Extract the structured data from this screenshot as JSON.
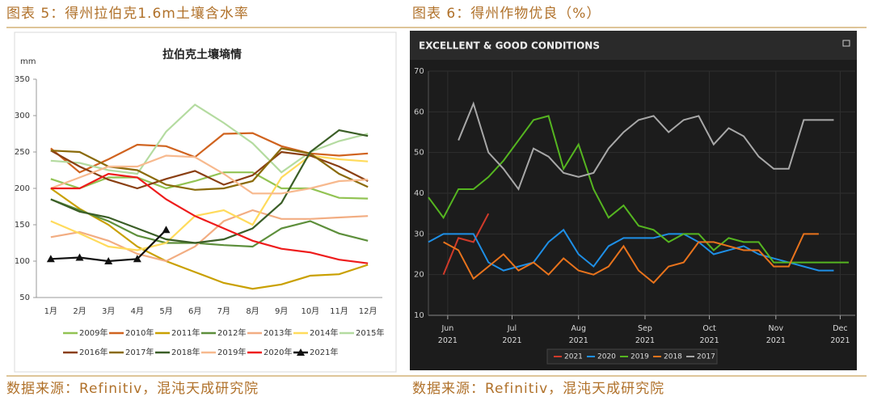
{
  "captions": [
    "图表 5：得州拉伯克1.6m土壤含水率",
    "图表 6：得州作物优良（%）"
  ],
  "sources": [
    "数据来源：Refinitiv，混沌天成研究院",
    "数据来源：Refinitiv，混沌天成研究院"
  ],
  "chart_data": [
    {
      "type": "line",
      "title": "拉伯克土壤墒情",
      "y_label": "mm",
      "categories": [
        "1月",
        "2月",
        "3月",
        "4月",
        "5月",
        "6月",
        "7月",
        "8月",
        "9月",
        "10月",
        "11月",
        "12月"
      ],
      "ylim": [
        50,
        350
      ],
      "yticks": [
        50,
        100,
        150,
        200,
        250,
        300,
        350
      ],
      "grid": false,
      "series": [
        {
          "name": "2009年",
          "color": "#92c353",
          "values": [
            213,
            200,
            215,
            215,
            200,
            210,
            222,
            222,
            200,
            200,
            187,
            186
          ]
        },
        {
          "name": "2010年",
          "color": "#d0631f",
          "values": [
            255,
            222,
            240,
            260,
            258,
            243,
            275,
            276,
            258,
            248,
            245,
            248
          ]
        },
        {
          "name": "2011年",
          "color": "#c9a000",
          "values": [
            200,
            172,
            150,
            120,
            100,
            85,
            70,
            62,
            68,
            80,
            82,
            95
          ]
        },
        {
          "name": "2012年",
          "color": "#5d8f3b",
          "values": [
            185,
            170,
            155,
            135,
            125,
            125,
            122,
            120,
            145,
            155,
            138,
            128
          ]
        },
        {
          "name": "2013年",
          "color": "#f2ad82",
          "values": [
            133,
            140,
            128,
            110,
            100,
            120,
            155,
            170,
            158,
            158,
            160,
            162
          ]
        },
        {
          "name": "2014年",
          "color": "#ffdb5c",
          "values": [
            155,
            138,
            120,
            115,
            125,
            162,
            170,
            150,
            215,
            245,
            240,
            237
          ]
        },
        {
          "name": "2015年",
          "color": "#b4dba0",
          "values": [
            238,
            235,
            225,
            220,
            278,
            315,
            290,
            262,
            222,
            250,
            265,
            275
          ]
        },
        {
          "name": "2016年",
          "color": "#8a3f12",
          "values": [
            252,
            230,
            212,
            200,
            213,
            224,
            205,
            218,
            250,
            245,
            230,
            210
          ]
        },
        {
          "name": "2017年",
          "color": "#8a6a0a",
          "values": [
            252,
            250,
            230,
            225,
            205,
            198,
            200,
            210,
            255,
            248,
            220,
            202
          ]
        },
        {
          "name": "2018年",
          "color": "#3b5e27",
          "values": [
            185,
            168,
            160,
            145,
            130,
            125,
            130,
            145,
            180,
            250,
            280,
            272
          ]
        },
        {
          "name": "2019年",
          "color": "#f7b98e",
          "values": [
            200,
            215,
            230,
            230,
            245,
            243,
            220,
            193,
            193,
            200,
            210,
            212
          ]
        },
        {
          "name": "2020年",
          "color": "#ee1c1c",
          "values": [
            200,
            200,
            220,
            215,
            185,
            162,
            145,
            128,
            117,
            112,
            102,
            97
          ]
        },
        {
          "name": "2021年",
          "color": "#111111",
          "markers": true,
          "values": [
            103,
            105,
            100,
            103,
            143,
            null,
            null,
            null,
            null,
            null,
            null,
            null
          ]
        }
      ]
    },
    {
      "type": "line",
      "title": "EXCELLENT & GOOD CONDITIONS",
      "x": [
        143,
        150,
        157,
        164,
        171,
        178,
        185,
        192,
        199,
        206,
        213,
        220,
        227,
        234,
        241,
        248,
        255,
        262,
        269,
        276,
        283,
        290,
        297,
        304,
        311,
        318,
        325,
        332,
        339
      ],
      "xlim": [
        143,
        342
      ],
      "xticks": [
        {
          "value": 152,
          "label": "Jun 2021"
        },
        {
          "value": 182,
          "label": "Jul 2021"
        },
        {
          "value": 213,
          "label": "Aug 2021"
        },
        {
          "value": 244,
          "label": "Sep 2021"
        },
        {
          "value": 274,
          "label": "Oct 2021"
        },
        {
          "value": 305,
          "label": "Nov 2021"
        },
        {
          "value": 335,
          "label": "Dec 2021"
        }
      ],
      "ylim": [
        10,
        70
      ],
      "yticks": [
        10,
        20,
        30,
        40,
        50,
        60,
        70
      ],
      "grid": true,
      "series": [
        {
          "name": "2021",
          "color": "#d03a2a",
          "values": [
            null,
            20,
            29,
            28,
            35,
            null,
            null,
            null,
            null,
            null,
            null,
            null,
            null,
            null,
            null,
            null,
            null,
            null,
            null,
            null,
            null,
            null,
            null,
            null,
            null,
            null,
            null,
            null,
            null
          ]
        },
        {
          "name": "2020",
          "color": "#1e8fe6",
          "values": [
            28,
            30,
            30,
            30,
            23,
            21,
            22,
            23,
            28,
            31,
            25,
            22,
            27,
            29,
            29,
            29,
            30,
            30,
            28,
            25,
            26,
            27,
            25,
            24,
            23,
            22,
            21,
            21,
            null
          ]
        },
        {
          "name": "2019",
          "color": "#55b520",
          "values": [
            39,
            34,
            41,
            41,
            44,
            48,
            53,
            58,
            59,
            46,
            52,
            41,
            34,
            37,
            32,
            31,
            28,
            30,
            30,
            26,
            29,
            28,
            28,
            23,
            23,
            23,
            23,
            23,
            23
          ]
        },
        {
          "name": "2018",
          "color": "#e8731c",
          "values": [
            null,
            28,
            26,
            19,
            22,
            25,
            21,
            23,
            20,
            24,
            21,
            20,
            22,
            27,
            21,
            18,
            22,
            23,
            28,
            28,
            27,
            26,
            26,
            22,
            22,
            30,
            30,
            null,
            null
          ]
        },
        {
          "name": "2017",
          "color": "#a8a8a8",
          "values": [
            null,
            null,
            53,
            62,
            50,
            46,
            41,
            51,
            49,
            45,
            44,
            45,
            51,
            55,
            58,
            59,
            55,
            58,
            59,
            52,
            56,
            54,
            49,
            46,
            46,
            58,
            58,
            58,
            null
          ]
        }
      ]
    }
  ]
}
